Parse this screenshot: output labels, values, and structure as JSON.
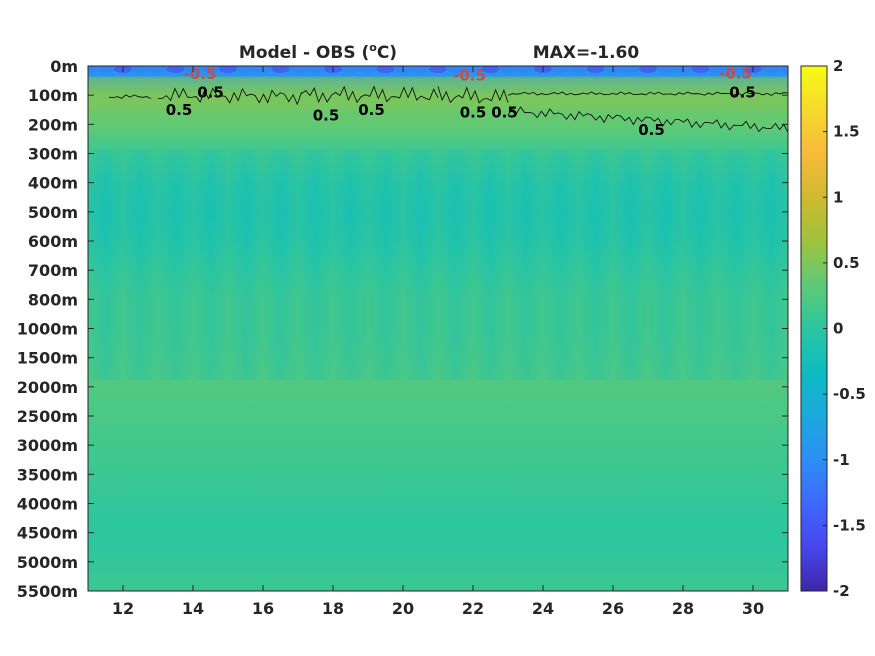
{
  "chart_data": {
    "type": "heatmap",
    "title": "Model - OBS (",
    "title_unit": "o",
    "title_unit_suffix": "C)",
    "max_label": "MAX=-1.60",
    "x": {
      "range": [
        11,
        31
      ],
      "ticks": [
        12,
        14,
        16,
        18,
        20,
        22,
        24,
        26,
        28,
        30
      ],
      "tick_labels": [
        "12",
        "14",
        "16",
        "18",
        "20",
        "22",
        "24",
        "26",
        "28",
        "30"
      ]
    },
    "y": {
      "scale": "categorical-depth",
      "tick_labels": [
        "0m",
        "100m",
        "200m",
        "300m",
        "400m",
        "500m",
        "600m",
        "700m",
        "800m",
        "1000m",
        "1500m",
        "2000m",
        "2500m",
        "3000m",
        "3500m",
        "4000m",
        "4500m",
        "5000m",
        "5500m"
      ]
    },
    "colorbar": {
      "range": [
        -2,
        2
      ],
      "ticks": [
        2,
        1.5,
        1,
        0.5,
        0,
        -0.5,
        -1,
        -1.5,
        -2
      ],
      "tick_labels": [
        "2",
        "1.5",
        "1",
        "0.5",
        "0",
        "-0.5",
        "-1",
        "-1.5",
        "-2"
      ],
      "colormap": "parula",
      "colors": [
        "#3e26a8",
        "#4746eb",
        "#3e68fe",
        "#2d8ef4",
        "#1ba9dc",
        "#0cbbc1",
        "#2bc6a0",
        "#5fc976",
        "#9ec33e",
        "#d0b92e",
        "#f8ba3c",
        "#f6d92c",
        "#f9fb15"
      ]
    },
    "approx_values_by_depth": [
      {
        "depth": "0m",
        "value": -0.9
      },
      {
        "depth": "100m",
        "value": 0.45
      },
      {
        "depth": "200m",
        "value": 0.35
      },
      {
        "depth": "300m",
        "value": 0.1
      },
      {
        "depth": "400m",
        "value": -0.1
      },
      {
        "depth": "500m",
        "value": -0.15
      },
      {
        "depth": "600m",
        "value": -0.1
      },
      {
        "depth": "700m",
        "value": 0.05
      },
      {
        "depth": "800m",
        "value": 0.15
      },
      {
        "depth": "1000m",
        "value": 0.15
      },
      {
        "depth": "1500m",
        "value": 0.2
      },
      {
        "depth": "2000m",
        "value": 0.25
      },
      {
        "depth": "2500m",
        "value": 0.2
      },
      {
        "depth": "3000m",
        "value": 0.15
      },
      {
        "depth": "3500m",
        "value": 0.1
      },
      {
        "depth": "4000m",
        "value": 0.05
      },
      {
        "depth": "4500m",
        "value": 0.0
      },
      {
        "depth": "5000m",
        "value": 0.05
      },
      {
        "depth": "5500m",
        "value": 0.1
      }
    ],
    "contour_labels": [
      {
        "text": "-0.5",
        "x": 14.2,
        "depth_index": 0.28,
        "color": "#c0504d"
      },
      {
        "text": "-0.5",
        "x": 21.9,
        "depth_index": 0.33,
        "color": "#c0504d"
      },
      {
        "text": "-0.5",
        "x": 29.5,
        "depth_index": 0.25,
        "color": "#c0504d"
      },
      {
        "text": "0.5",
        "x": 14.5,
        "depth_index": 0.9,
        "color": "#000000"
      },
      {
        "text": "0.5",
        "x": 13.6,
        "depth_index": 1.5,
        "color": "#000000"
      },
      {
        "text": "0.5",
        "x": 17.8,
        "depth_index": 1.7,
        "color": "#000000"
      },
      {
        "text": "0.5",
        "x": 19.1,
        "depth_index": 1.5,
        "color": "#000000"
      },
      {
        "text": "0.5",
        "x": 22.0,
        "depth_index": 1.6,
        "color": "#000000"
      },
      {
        "text": "0.5",
        "x": 22.9,
        "depth_index": 1.6,
        "color": "#000000"
      },
      {
        "text": "0.5",
        "x": 29.7,
        "depth_index": 0.9,
        "color": "#000000"
      },
      {
        "text": "0.5",
        "x": 27.1,
        "depth_index": 2.2,
        "color": "#000000"
      }
    ],
    "grid": false,
    "legend": "none"
  }
}
